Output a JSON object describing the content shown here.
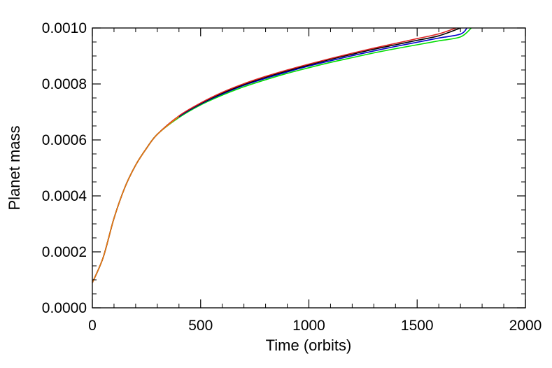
{
  "chart_data": {
    "type": "line",
    "title": "",
    "xlabel": "Time (orbits)",
    "ylabel": "Planet mass",
    "xlim": [
      0,
      2000
    ],
    "ylim": [
      0.0,
      0.001
    ],
    "x_ticks": [
      0,
      500,
      1000,
      1500,
      2000
    ],
    "x_tick_labels": [
      "0",
      "500",
      "1000",
      "1500",
      "2000"
    ],
    "y_ticks": [
      0.0,
      0.0002,
      0.0004,
      0.0006,
      0.0008,
      0.001
    ],
    "y_tick_labels": [
      "0.0000",
      "0.0002",
      "0.0004",
      "0.0006",
      "0.0008",
      "0.0010"
    ],
    "grid": false,
    "legend": "none",
    "series": [
      {
        "color": "#00dd00",
        "x": [
          0,
          50,
          100,
          150,
          200,
          250,
          300,
          400,
          500,
          600,
          700,
          800,
          900,
          1000,
          1100,
          1200,
          1300,
          1400,
          1500,
          1600,
          1700,
          1750
        ],
        "y": [
          9e-05,
          0.00018,
          0.00032,
          0.00043,
          0.00051,
          0.00057,
          0.00062,
          0.00068,
          0.000725,
          0.00076,
          0.00079,
          0.000815,
          0.000838,
          0.000858,
          0.000877,
          0.000894,
          0.000911,
          0.000926,
          0.00094,
          0.000954,
          0.000968,
          0.001
        ]
      },
      {
        "color": "#0000cc",
        "x": [
          0,
          50,
          100,
          150,
          200,
          250,
          300,
          400,
          500,
          600,
          700,
          800,
          900,
          1000,
          1100,
          1200,
          1300,
          1400,
          1500,
          1600,
          1700,
          1730
        ],
        "y": [
          9e-05,
          0.00018,
          0.00032,
          0.00043,
          0.00051,
          0.00057,
          0.00062,
          0.000683,
          0.000728,
          0.000764,
          0.000795,
          0.00082,
          0.000843,
          0.000864,
          0.000883,
          0.000901,
          0.000918,
          0.000934,
          0.000949,
          0.000964,
          0.000978,
          0.001
        ]
      },
      {
        "color": "#000000",
        "x": [
          0,
          50,
          100,
          150,
          200,
          250,
          300,
          400,
          500,
          600,
          700,
          800,
          900,
          1000,
          1100,
          1200,
          1300,
          1400,
          1500,
          1600,
          1700
        ],
        "y": [
          9e-05,
          0.00018,
          0.00032,
          0.00043,
          0.00051,
          0.00057,
          0.00062,
          0.000685,
          0.00073,
          0.000767,
          0.000798,
          0.000824,
          0.000847,
          0.000868,
          0.000888,
          0.000906,
          0.000924,
          0.00094,
          0.000956,
          0.000972,
          0.001
        ]
      },
      {
        "color": "#dd2222",
        "x": [
          0,
          50,
          100,
          150,
          200,
          250,
          300,
          400,
          500,
          600,
          700,
          800,
          900,
          1000,
          1100,
          1200,
          1300,
          1400,
          1500,
          1600,
          1680
        ],
        "y": [
          9e-05,
          0.00018,
          0.00032,
          0.00043,
          0.00051,
          0.00057,
          0.00062,
          0.000686,
          0.000732,
          0.00077,
          0.000801,
          0.000827,
          0.00085,
          0.000871,
          0.000891,
          0.00091,
          0.000928,
          0.000945,
          0.000962,
          0.000979,
          0.001
        ]
      },
      {
        "color": "#e07a10",
        "x": [
          0,
          50,
          100,
          150,
          200,
          250,
          300,
          400
        ],
        "y": [
          9e-05,
          0.00018,
          0.00032,
          0.00043,
          0.00051,
          0.00057,
          0.00062,
          0.000684
        ]
      }
    ]
  }
}
